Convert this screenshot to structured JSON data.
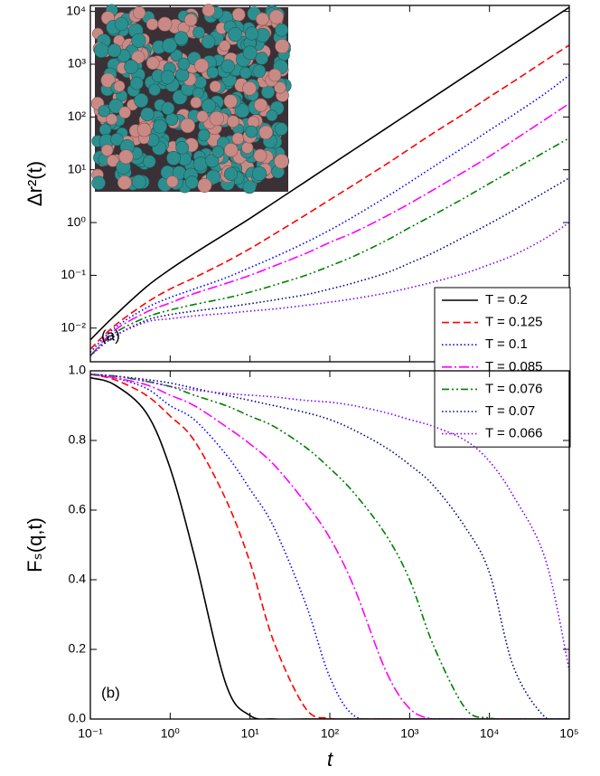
{
  "chart_data": [
    {
      "type": "line",
      "xscale": "log",
      "yscale": "log",
      "ylabel": "Δr²(t)",
      "annotation": "(a)",
      "x": [
        0.1,
        0.2,
        0.5,
        1,
        2,
        5,
        10,
        20,
        50,
        100,
        200,
        500,
        1000,
        2000,
        5000,
        10000,
        20000,
        50000,
        100000
      ],
      "xlim": [
        0.1,
        100000
      ],
      "xticks": [
        0.1,
        1,
        10,
        100,
        1000,
        10000,
        100000
      ],
      "ylim": [
        0.0023,
        13000
      ],
      "yticks": [
        {
          "value": 0.01,
          "label": "10⁻²"
        },
        {
          "value": 0.1,
          "label": "10⁻¹"
        },
        {
          "value": 1,
          "label": "10⁰"
        },
        {
          "value": 10,
          "label": "10¹"
        },
        {
          "value": 100,
          "label": "10²"
        },
        {
          "value": 1000,
          "label": "10³"
        },
        {
          "value": 10000,
          "label": "10⁴"
        }
      ],
      "legend": "lower right",
      "series": [
        {
          "name": "T = 0.2",
          "color": "#000000",
          "linestyle": "solid",
          "values": [
            0.006,
            0.017,
            0.06,
            0.13,
            0.26,
            0.62,
            1.2,
            2.4,
            6,
            12,
            24,
            60,
            120,
            240,
            600,
            1200,
            2400,
            6000,
            12000
          ]
        },
        {
          "name": "T = 0.125",
          "color": "#ff0000",
          "linestyle": "dashed",
          "values": [
            0.004,
            0.011,
            0.03,
            0.055,
            0.09,
            0.18,
            0.32,
            0.6,
            1.4,
            2.7,
            5.2,
            12.5,
            25,
            50,
            120,
            240,
            470,
            1170,
            2300
          ]
        },
        {
          "name": "T = 0.1",
          "color": "#0000ff",
          "linestyle": "dotted",
          "values": [
            0.0035,
            0.01,
            0.024,
            0.038,
            0.055,
            0.09,
            0.14,
            0.22,
            0.42,
            0.72,
            1.3,
            3.0,
            5.8,
            11.5,
            28,
            56,
            110,
            280,
            620
          ]
        },
        {
          "name": "T = 0.085",
          "color": "#ff00ff",
          "linestyle": "dashdot",
          "values": [
            0.003,
            0.009,
            0.02,
            0.03,
            0.045,
            0.07,
            0.1,
            0.15,
            0.26,
            0.42,
            0.65,
            1.3,
            2.3,
            4.2,
            9.5,
            18,
            36,
            90,
            180
          ]
        },
        {
          "name": "T = 0.076",
          "color": "#008000",
          "linestyle": "dashdotdot",
          "values": [
            0.003,
            0.008,
            0.016,
            0.022,
            0.028,
            0.037,
            0.048,
            0.065,
            0.1,
            0.15,
            0.23,
            0.45,
            0.8,
            1.4,
            3,
            5.5,
            10,
            22,
            40
          ]
        },
        {
          "name": "T = 0.07",
          "color": "#000080",
          "linestyle": "dotted",
          "values": [
            0.003,
            0.007,
            0.014,
            0.018,
            0.021,
            0.025,
            0.029,
            0.034,
            0.043,
            0.055,
            0.072,
            0.11,
            0.17,
            0.27,
            0.55,
            0.95,
            1.7,
            3.8,
            7
          ]
        },
        {
          "name": "T = 0.066",
          "color": "#8000ff",
          "linestyle": "dotted",
          "values": [
            0.003,
            0.007,
            0.013,
            0.015,
            0.017,
            0.019,
            0.021,
            0.023,
            0.027,
            0.031,
            0.036,
            0.046,
            0.058,
            0.075,
            0.11,
            0.16,
            0.24,
            0.5,
            1.0
          ]
        }
      ]
    },
    {
      "type": "line",
      "xscale": "log",
      "yscale": "linear",
      "xlabel": "t",
      "ylabel": "Fₛ(q,t)",
      "annotation": "(b)",
      "x": [
        0.1,
        0.2,
        0.5,
        1,
        2,
        5,
        10,
        20,
        50,
        100,
        200,
        500,
        1000,
        2000,
        5000,
        10000,
        20000,
        50000,
        100000
      ],
      "xlim": [
        0.1,
        100000
      ],
      "xticks": [
        {
          "value": 0.1,
          "label": "10⁻¹"
        },
        {
          "value": 1,
          "label": "10⁰"
        },
        {
          "value": 10,
          "label": "10¹"
        },
        {
          "value": 100,
          "label": "10²"
        },
        {
          "value": 1000,
          "label": "10³"
        },
        {
          "value": 10000,
          "label": "10⁴"
        },
        {
          "value": 100000,
          "label": "10⁵"
        }
      ],
      "ylim": [
        0,
        1
      ],
      "yticks": [
        {
          "value": 0,
          "label": "0.0"
        },
        0.2,
        0.4,
        0.6,
        0.8,
        {
          "value": 1,
          "label": "1.0"
        }
      ],
      "series": [
        {
          "color": "#000000",
          "linestyle": "solid",
          "values": [
            0.98,
            0.96,
            0.88,
            0.72,
            0.47,
            0.1,
            0.01,
            0,
            0,
            0,
            0,
            0,
            0,
            0,
            0,
            0,
            0,
            0,
            0
          ]
        },
        {
          "color": "#ff0000",
          "linestyle": "dashed",
          "values": [
            0.99,
            0.975,
            0.93,
            0.87,
            0.8,
            0.63,
            0.45,
            0.22,
            0.03,
            0.002,
            0,
            0,
            0,
            0,
            0,
            0,
            0,
            0,
            0
          ]
        },
        {
          "color": "#0000ff",
          "linestyle": "dotted",
          "values": [
            0.99,
            0.98,
            0.95,
            0.9,
            0.86,
            0.76,
            0.66,
            0.55,
            0.33,
            0.12,
            0.01,
            0,
            0,
            0,
            0,
            0,
            0,
            0,
            0
          ]
        },
        {
          "color": "#ff00ff",
          "linestyle": "dashdot",
          "values": [
            0.99,
            0.98,
            0.96,
            0.93,
            0.9,
            0.84,
            0.79,
            0.73,
            0.62,
            0.52,
            0.38,
            0.14,
            0.03,
            0,
            0,
            0,
            0,
            0,
            0
          ]
        },
        {
          "color": "#008000",
          "linestyle": "dashdotdot",
          "values": [
            0.99,
            0.985,
            0.97,
            0.955,
            0.93,
            0.9,
            0.87,
            0.84,
            0.78,
            0.72,
            0.65,
            0.53,
            0.4,
            0.21,
            0.03,
            0.003,
            0,
            0,
            0
          ]
        },
        {
          "color": "#000080",
          "linestyle": "dotted",
          "values": [
            0.99,
            0.985,
            0.975,
            0.965,
            0.95,
            0.93,
            0.915,
            0.9,
            0.88,
            0.86,
            0.83,
            0.78,
            0.73,
            0.67,
            0.55,
            0.42,
            0.15,
            0.005,
            0
          ]
        },
        {
          "color": "#8000ff",
          "linestyle": "dotted",
          "values": [
            0.99,
            0.985,
            0.97,
            0.955,
            0.945,
            0.935,
            0.93,
            0.925,
            0.915,
            0.91,
            0.9,
            0.88,
            0.86,
            0.84,
            0.8,
            0.74,
            0.64,
            0.46,
            0.14
          ]
        }
      ]
    }
  ]
}
